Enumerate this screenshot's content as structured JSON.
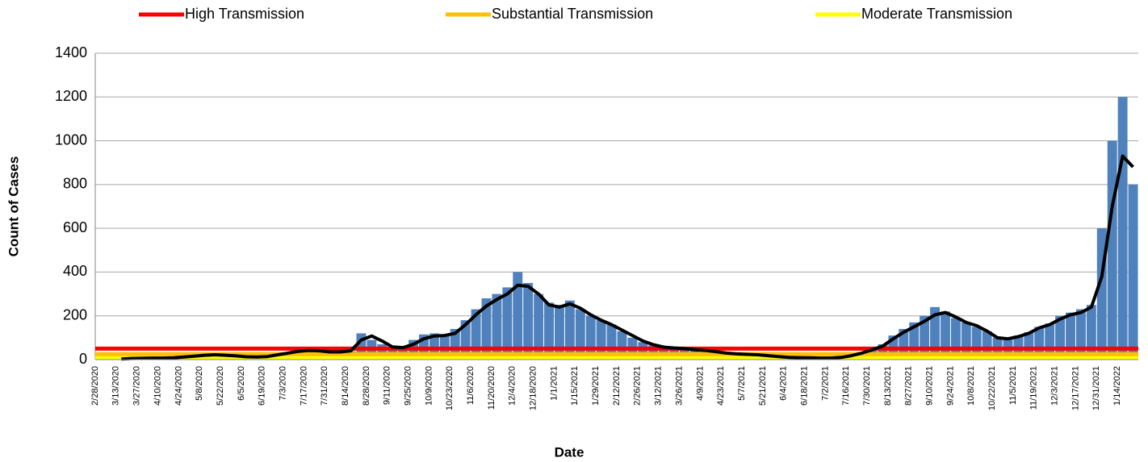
{
  "chart_data": {
    "type": "bar",
    "y_label": "Count of Cases",
    "x_label": "Date",
    "categories": [
      "2/28/2020",
      null,
      "3/13/2020",
      null,
      "3/27/2020",
      null,
      "4/10/2020",
      null,
      "4/24/2020",
      null,
      "5/8/2020",
      null,
      "5/22/2020",
      null,
      "6/5/2020",
      null,
      "6/19/2020",
      null,
      "7/3/2020",
      null,
      "7/17/2020",
      null,
      "7/31/2020",
      null,
      "8/14/2020",
      null,
      "8/28/2020",
      null,
      "9/11/2020",
      null,
      "9/25/2020",
      null,
      "10/9/2020",
      null,
      "10/23/2020",
      null,
      "11/6/2020",
      null,
      "11/20/2020",
      null,
      "12/4/2020",
      null,
      "12/18/2020",
      null,
      "1/1/2021",
      null,
      "1/15/2021",
      null,
      "1/29/2021",
      null,
      "2/12/2021",
      null,
      "2/26/2021",
      null,
      "3/12/2021",
      null,
      "3/26/2021",
      null,
      "4/9/2021",
      null,
      "4/23/2021",
      null,
      "5/7/2021",
      null,
      "5/21/2021",
      null,
      "6/4/2021",
      null,
      "6/18/2021",
      null,
      "7/2/2021",
      null,
      "7/16/2021",
      null,
      "7/30/2021",
      null,
      "8/13/2021",
      null,
      "8/27/2021",
      null,
      "9/10/2021",
      null,
      "9/24/2021",
      null,
      "10/8/2021",
      null,
      "10/22/2021",
      null,
      "11/5/2021",
      null,
      "11/19/2021",
      null,
      "12/3/2021",
      null,
      "12/17/2021",
      null,
      "12/31/2021",
      null,
      "1/14/2022",
      null
    ],
    "series": [
      {
        "type": "bar",
        "color": "#4f81bd",
        "values": [
          0,
          0,
          3,
          5,
          6,
          7,
          7,
          8,
          12,
          16,
          20,
          22,
          20,
          17,
          13,
          12,
          14,
          22,
          30,
          38,
          42,
          40,
          35,
          33,
          38,
          120,
          90,
          70,
          55,
          55,
          90,
          115,
          120,
          115,
          140,
          180,
          230,
          280,
          300,
          330,
          400,
          350,
          300,
          260,
          250,
          270,
          230,
          200,
          180,
          160,
          130,
          100,
          80,
          65,
          55,
          52,
          50,
          45,
          42,
          36,
          30,
          26,
          24,
          22,
          18,
          14,
          10,
          9,
          8,
          7,
          7,
          10,
          20,
          35,
          50,
          70,
          110,
          140,
          170,
          200,
          240,
          220,
          190,
          170,
          150,
          130,
          100,
          95,
          110,
          125,
          150,
          165,
          200,
          215,
          230,
          250,
          600,
          1000,
          1200,
          800
        ]
      },
      {
        "type": "line",
        "color": "#000000",
        "values": [
          null,
          null,
          3,
          5,
          6,
          7,
          7,
          8,
          12,
          16,
          20,
          22,
          20,
          17,
          13,
          12,
          14,
          22,
          30,
          38,
          42,
          40,
          35,
          35,
          40,
          90,
          108,
          85,
          58,
          55,
          70,
          95,
          108,
          110,
          120,
          160,
          205,
          245,
          275,
          300,
          340,
          335,
          300,
          250,
          240,
          255,
          235,
          205,
          180,
          160,
          135,
          110,
          85,
          68,
          57,
          53,
          50,
          45,
          42,
          36,
          30,
          26,
          24,
          22,
          18,
          14,
          10,
          9,
          8,
          7,
          7,
          10,
          18,
          30,
          45,
          62,
          95,
          125,
          150,
          175,
          205,
          215,
          195,
          170,
          155,
          130,
          100,
          95,
          105,
          120,
          145,
          160,
          185,
          205,
          215,
          240,
          380,
          700,
          930,
          880
        ]
      }
    ],
    "thresholds": [
      {
        "name": "High Transmission",
        "color": "#ff0000",
        "value": 50
      },
      {
        "name": "Substantial Transmission",
        "color": "#ffc000",
        "value": 25
      },
      {
        "name": "Moderate Transmission",
        "color": "#ffff00",
        "value": 10
      }
    ],
    "ylim": [
      0,
      1400
    ],
    "yticks": [
      0,
      200,
      400,
      600,
      800,
      1000,
      1200,
      1400
    ],
    "grid": true
  }
}
